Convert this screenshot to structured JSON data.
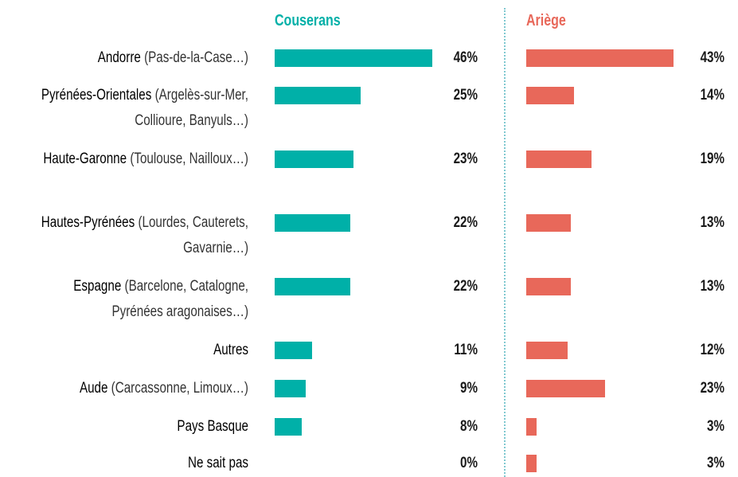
{
  "chart_data": {
    "type": "bar",
    "categories": [
      "Andorre",
      "Pyrénées-Orientales",
      "Haute-Garonne",
      "Hautes-Pyrénées",
      "Espagne",
      "Autres",
      "Aude",
      "Pays Basque",
      "Ne sait pas"
    ],
    "category_notes": [
      "(Pas-de-la-Case…)",
      "(Argelès-sur-Mer, Collioure, Banyuls…)",
      "(Toulouse, Nailloux…)",
      "(Lourdes, Cauterets, Gavarnie…)",
      "(Barcelone, Catalogne, Pyrénées aragonaises…)",
      null,
      "(Carcassonne, Limoux…)",
      null,
      null
    ],
    "series": [
      {
        "name": "Couserans",
        "color": "#00b0a8",
        "values": [
          46,
          25,
          23,
          22,
          22,
          11,
          9,
          8,
          0
        ],
        "value_labels": [
          "46%",
          "25%",
          "23%",
          "22%",
          "22%",
          "11%",
          "9%",
          "8%",
          "0%"
        ]
      },
      {
        "name": "Ariège",
        "color": "#e8685a",
        "values": [
          43,
          14,
          19,
          13,
          13,
          12,
          23,
          3,
          3
        ],
        "value_labels": [
          "43%",
          "14%",
          "19%",
          "13%",
          "13%",
          "12%",
          "23%",
          "3%",
          "3%"
        ]
      }
    ]
  }
}
